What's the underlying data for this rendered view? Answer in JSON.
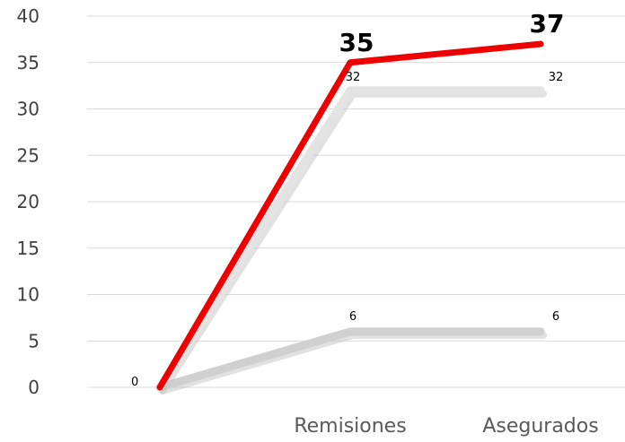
{
  "chart_data": {
    "type": "line",
    "categories": [
      "",
      "Remisiones",
      "Asegurados"
    ],
    "ylim": [
      0,
      40
    ],
    "yticks": [
      0,
      5,
      10,
      15,
      20,
      25,
      30,
      35,
      40
    ],
    "grid": true,
    "legend": "none",
    "series": [
      {
        "values": [
          0,
          6,
          6
        ],
        "color": "#d0d0d0",
        "labels": [
          "",
          "6",
          "6"
        ]
      },
      {
        "values": [
          0,
          32,
          32
        ],
        "color": "#e3e3e3",
        "labels": [
          "",
          "32",
          "32"
        ]
      },
      {
        "values": [
          0,
          35,
          37
        ],
        "color": "#ee0000",
        "labels": [
          "0",
          "35",
          "37"
        ],
        "emphasis": true
      }
    ]
  }
}
